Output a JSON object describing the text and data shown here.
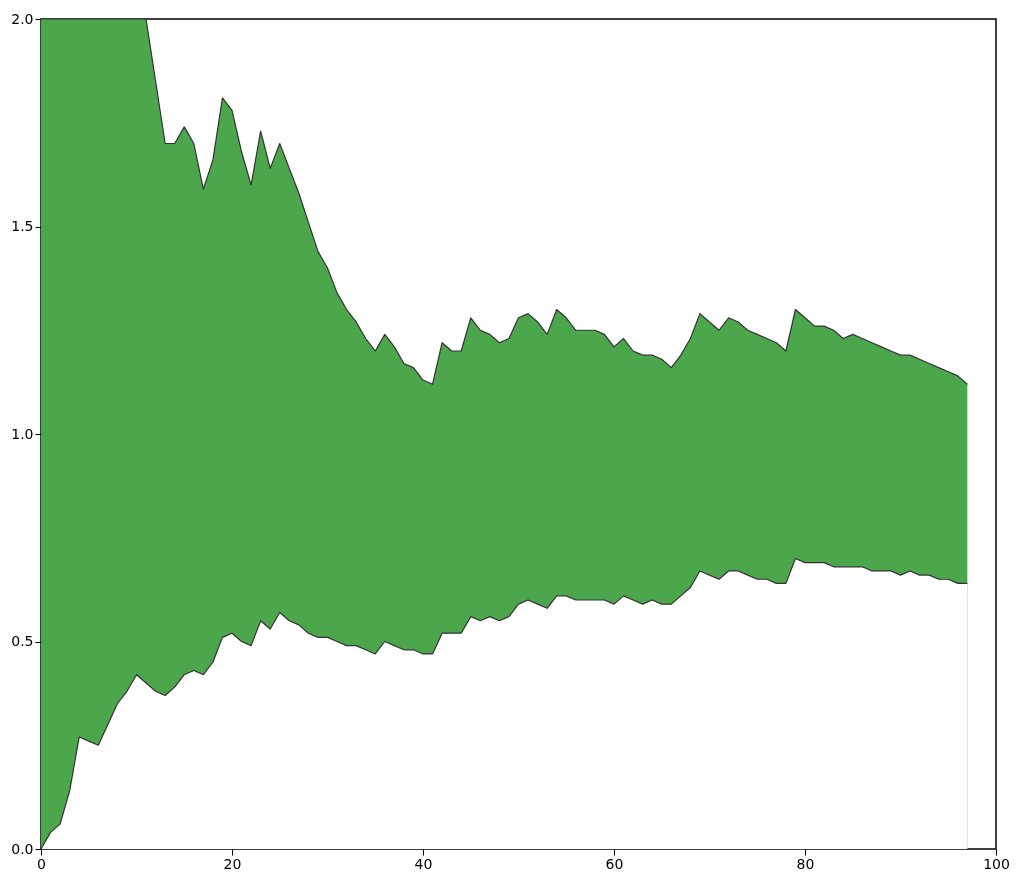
{
  "chart_data": {
    "type": "area",
    "x": [
      0,
      1,
      2,
      3,
      4,
      5,
      6,
      7,
      8,
      9,
      10,
      11,
      12,
      13,
      14,
      15,
      16,
      17,
      18,
      19,
      20,
      21,
      22,
      23,
      24,
      25,
      26,
      27,
      28,
      29,
      30,
      31,
      32,
      33,
      34,
      35,
      36,
      37,
      38,
      39,
      40,
      41,
      42,
      43,
      44,
      45,
      46,
      47,
      48,
      49,
      50,
      51,
      52,
      53,
      54,
      55,
      56,
      57,
      58,
      59,
      60,
      61,
      62,
      63,
      64,
      65,
      66,
      67,
      68,
      69,
      70,
      71,
      72,
      73,
      74,
      75,
      76,
      77,
      78,
      79,
      80,
      81,
      82,
      83,
      84,
      85,
      86,
      87,
      88,
      89,
      90,
      91,
      92,
      93,
      94,
      95,
      96,
      97
    ],
    "series": [
      {
        "color": "#4ca64c",
        "values": [
          2.0,
          2.0,
          2.0,
          2.0,
          2.0,
          2.0,
          2.0,
          2.0,
          2.0,
          2.0,
          2.0,
          2.0,
          1.85,
          1.7,
          1.7,
          1.74,
          1.7,
          1.59,
          1.66,
          1.81,
          1.78,
          1.68,
          1.6,
          1.73,
          1.64,
          1.7,
          1.64,
          1.58,
          1.51,
          1.44,
          1.4,
          1.34,
          1.3,
          1.27,
          1.23,
          1.2,
          1.24,
          1.21,
          1.17,
          1.16,
          1.13,
          1.12,
          1.22,
          1.2,
          1.2,
          1.28,
          1.25,
          1.24,
          1.22,
          1.23,
          1.28,
          1.29,
          1.27,
          1.24,
          1.3,
          1.28,
          1.25,
          1.25,
          1.25,
          1.24,
          1.21,
          1.23,
          1.2,
          1.19,
          1.19,
          1.18,
          1.16,
          1.19,
          1.23,
          1.29,
          1.27,
          1.25,
          1.28,
          1.27,
          1.25,
          1.24,
          1.23,
          1.22,
          1.2,
          1.3,
          1.28,
          1.26,
          1.26,
          1.25,
          1.23,
          1.24,
          1.23,
          1.22,
          1.21,
          1.2,
          1.19,
          1.19,
          1.18,
          1.17,
          1.16,
          1.15,
          1.14,
          1.12
        ]
      },
      {
        "color": "#ffffff",
        "values": [
          0.0,
          0.04,
          0.06,
          0.14,
          0.27,
          0.26,
          0.25,
          0.3,
          0.35,
          0.38,
          0.42,
          0.4,
          0.38,
          0.37,
          0.39,
          0.42,
          0.43,
          0.42,
          0.45,
          0.51,
          0.52,
          0.5,
          0.49,
          0.55,
          0.53,
          0.57,
          0.55,
          0.54,
          0.52,
          0.51,
          0.51,
          0.5,
          0.49,
          0.49,
          0.48,
          0.47,
          0.5,
          0.49,
          0.48,
          0.48,
          0.47,
          0.47,
          0.52,
          0.52,
          0.52,
          0.56,
          0.55,
          0.56,
          0.55,
          0.56,
          0.59,
          0.6,
          0.59,
          0.58,
          0.61,
          0.61,
          0.6,
          0.6,
          0.6,
          0.6,
          0.59,
          0.61,
          0.6,
          0.59,
          0.6,
          0.59,
          0.59,
          0.61,
          0.63,
          0.67,
          0.66,
          0.65,
          0.67,
          0.67,
          0.66,
          0.65,
          0.65,
          0.64,
          0.64,
          0.7,
          0.69,
          0.69,
          0.69,
          0.68,
          0.68,
          0.68,
          0.68,
          0.67,
          0.67,
          0.67,
          0.66,
          0.67,
          0.66,
          0.66,
          0.65,
          0.65,
          0.64,
          0.64
        ]
      }
    ],
    "xlim": [
      0,
      100
    ],
    "ylim": [
      0,
      2
    ],
    "xticks": [
      0,
      20,
      40,
      60,
      80,
      100
    ],
    "yticks": [
      {
        "value": 0,
        "label": "0.0"
      },
      {
        "value": 0.5,
        "label": "0.5"
      },
      {
        "value": 1,
        "label": "1.0"
      },
      {
        "value": 1.5,
        "label": "1.5"
      },
      {
        "value": 2,
        "label": "2.0"
      }
    ],
    "grid": false
  }
}
